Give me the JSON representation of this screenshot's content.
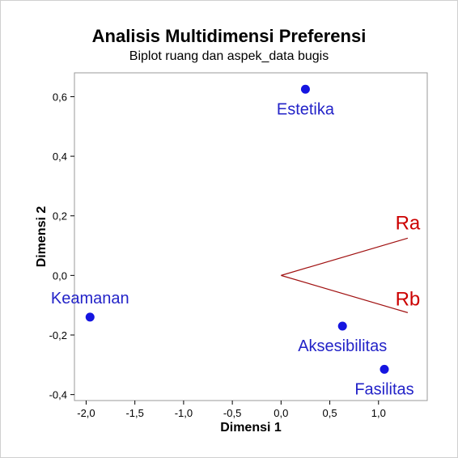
{
  "chart_data": {
    "type": "scatter",
    "title": "Analisis Multidimensi Preferensi",
    "subtitle": "Biplot ruang dan aspek_data bugis",
    "xlabel": "Dimensi 1",
    "ylabel": "Dimensi 2",
    "xlim": [
      -2.12,
      1.5
    ],
    "ylim": [
      -0.42,
      0.68
    ],
    "x_ticks": [
      -2.0,
      -1.5,
      -1.0,
      -0.5,
      0.0,
      0.5,
      1.0
    ],
    "x_tick_labels": [
      "-2,0",
      "-1,5",
      "-1,0",
      "-0,5",
      "0,0",
      "0,5",
      "1,0"
    ],
    "y_ticks": [
      -0.4,
      -0.2,
      0.0,
      0.2,
      0.4,
      0.6
    ],
    "y_tick_labels": [
      "-0,4",
      "-0,2",
      "0,0",
      "0,2",
      "0,4",
      "0,6"
    ],
    "grid": false,
    "points": [
      {
        "label": "Estetika",
        "x": 0.25,
        "y": 0.625,
        "label_pos": "below"
      },
      {
        "label": "Keamanan",
        "x": -1.96,
        "y": -0.14,
        "label_pos": "above"
      },
      {
        "label": "Aksesibilitas",
        "x": 0.63,
        "y": -0.17,
        "label_pos": "below"
      },
      {
        "label": "Fasilitas",
        "x": 1.06,
        "y": -0.315,
        "label_pos": "below"
      }
    ],
    "vectors": [
      {
        "label": "Ra",
        "x": 1.3,
        "y": 0.125
      },
      {
        "label": "Rb",
        "x": 1.3,
        "y": -0.125
      }
    ],
    "origin": [
      0,
      0
    ],
    "colors": {
      "points": "#1515e0",
      "point_labels": "#2323c8",
      "vectors": "#a01010",
      "vector_labels": "#cc0000"
    }
  }
}
